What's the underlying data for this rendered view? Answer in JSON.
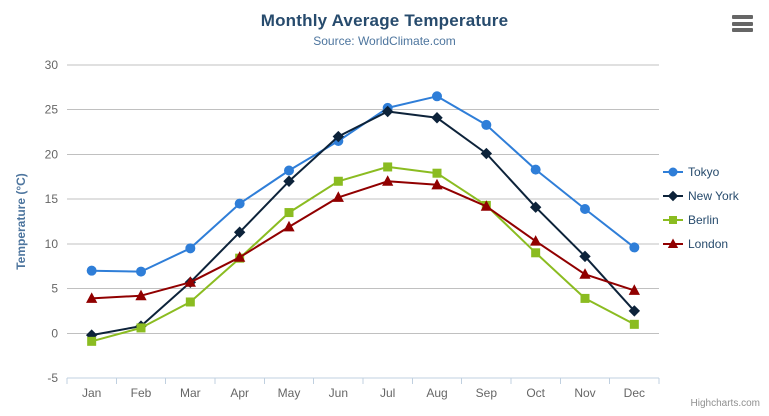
{
  "chart_data": {
    "type": "line",
    "title": "Monthly Average Temperature",
    "subtitle": "Source: WorldClimate.com",
    "xlabel": "",
    "ylabel": "Temperature (°C)",
    "categories": [
      "Jan",
      "Feb",
      "Mar",
      "Apr",
      "May",
      "Jun",
      "Jul",
      "Aug",
      "Sep",
      "Oct",
      "Nov",
      "Dec"
    ],
    "ylim": [
      -5,
      30
    ],
    "yticks": [
      30,
      25,
      20,
      15,
      10,
      5,
      0,
      -5
    ],
    "grid": true,
    "legend_position": "right",
    "series": [
      {
        "name": "Tokyo",
        "color": "#2f7ed8",
        "marker": "circle",
        "values": [
          7.0,
          6.9,
          9.5,
          14.5,
          18.2,
          21.5,
          25.2,
          26.5,
          23.3,
          18.3,
          13.9,
          9.6
        ]
      },
      {
        "name": "New York",
        "color": "#0d233a",
        "marker": "diamond",
        "values": [
          -0.2,
          0.8,
          5.7,
          11.3,
          17.0,
          22.0,
          24.8,
          24.1,
          20.1,
          14.1,
          8.6,
          2.5
        ]
      },
      {
        "name": "Berlin",
        "color": "#8bbc21",
        "marker": "square",
        "values": [
          -0.9,
          0.6,
          3.5,
          8.4,
          13.5,
          17.0,
          18.6,
          17.9,
          14.3,
          9.0,
          3.9,
          1.0
        ]
      },
      {
        "name": "London",
        "color": "#910000",
        "marker": "triangle",
        "values": [
          3.9,
          4.2,
          5.7,
          8.5,
          11.9,
          15.2,
          17.0,
          16.6,
          14.2,
          10.3,
          6.6,
          4.8
        ]
      }
    ]
  },
  "credits": {
    "label": "Highcharts.com"
  },
  "colors": {
    "background": "#ffffff",
    "title": "#274b6d",
    "subtitle": "#4d759e",
    "axis_title": "#4d759e",
    "axis_label": "#666666",
    "grid_line": "#c0c0c0",
    "axis_line": "#c0d0e0",
    "tick": "#c0d0e0",
    "legend_text": "#274b6d",
    "credits": "#909090",
    "menu_icon": "#666666"
  }
}
